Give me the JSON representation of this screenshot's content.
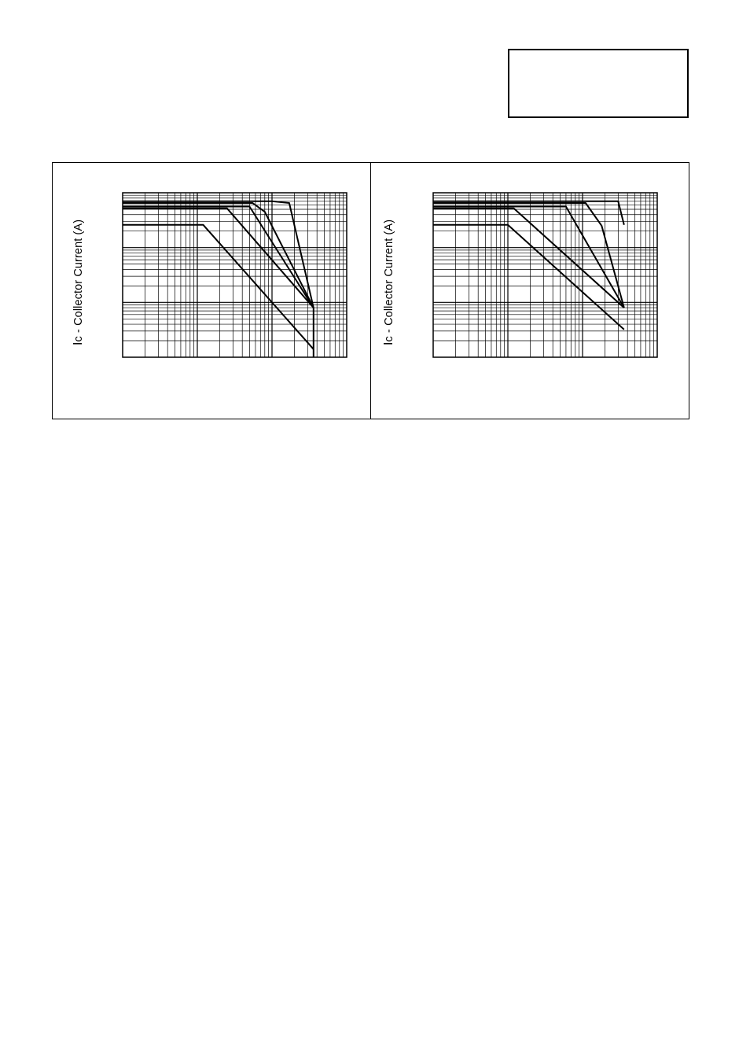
{
  "header_box": {
    "text": ""
  },
  "charts": [
    {
      "ylabel_symbol": "I",
      "ylabel_text": "c - Collector Current (A)"
    },
    {
      "ylabel_symbol": "I",
      "ylabel_text": "c - Collector Current (A)"
    }
  ],
  "chart_data": [
    {
      "type": "line",
      "title": "",
      "xlabel": "",
      "ylabel": "Ic - Collector Current (A)",
      "xscale": "log",
      "yscale": "log",
      "grid": true,
      "xlim": [
        1,
        1000
      ],
      "ylim": [
        0.01,
        10
      ],
      "series": [
        {
          "x": [
            1,
            100,
            170,
            360
          ],
          "y": [
            7,
            7,
            6.5,
            0.08
          ]
        },
        {
          "x": [
            1,
            55,
            80,
            360
          ],
          "y": [
            6.5,
            6.5,
            4.5,
            0.08
          ]
        },
        {
          "x": [
            1,
            50,
            360
          ],
          "y": [
            5.6,
            5.6,
            0.08
          ]
        },
        {
          "x": [
            1,
            25,
            360
          ],
          "y": [
            5.2,
            5.2,
            0.08
          ]
        },
        {
          "x": [
            1,
            12,
            360
          ],
          "y": [
            2.6,
            2.6,
            0.014
          ]
        },
        {
          "x": [
            360,
            360
          ],
          "y": [
            0.08,
            0.01
          ]
        }
      ]
    },
    {
      "type": "line",
      "title": "",
      "xlabel": "",
      "ylabel": "Ic - Collector Current (A)",
      "xscale": "log",
      "yscale": "log",
      "grid": true,
      "xlim": [
        1,
        1000
      ],
      "ylim": [
        0.01,
        10
      ],
      "series": [
        {
          "x": [
            1,
            300,
            360
          ],
          "y": [
            7,
            7,
            2.6
          ]
        },
        {
          "x": [
            1,
            110,
            180,
            360
          ],
          "y": [
            6.5,
            6.5,
            2.5,
            0.08
          ]
        },
        {
          "x": [
            1,
            60,
            360
          ],
          "y": [
            5.6,
            5.6,
            0.08
          ]
        },
        {
          "x": [
            1,
            12,
            360
          ],
          "y": [
            5.2,
            5.2,
            0.08
          ]
        },
        {
          "x": [
            1,
            10,
            360
          ],
          "y": [
            2.6,
            2.6,
            0.032
          ]
        }
      ]
    }
  ]
}
